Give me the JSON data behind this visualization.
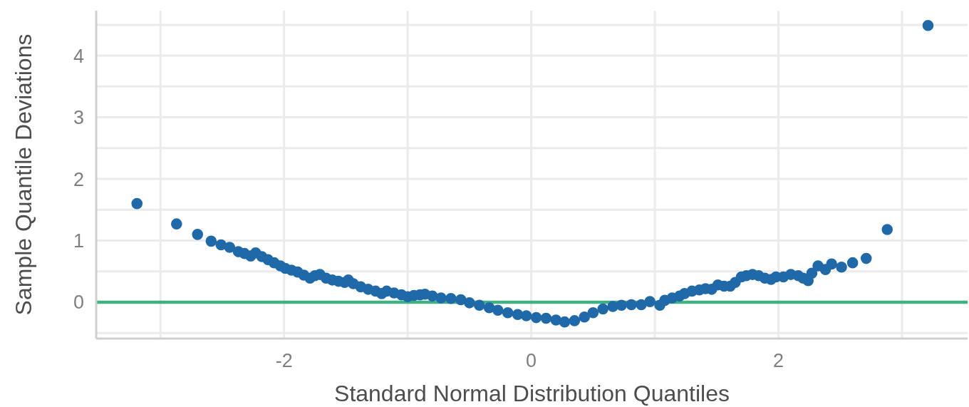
{
  "chart_data": {
    "type": "scatter",
    "xlabel": "Standard Normal Distribution Quantiles",
    "ylabel": "Sample Quantile Deviations",
    "x": [
      -3.19,
      -2.87,
      -2.7,
      -2.59,
      -2.51,
      -2.44,
      -2.37,
      -2.32,
      -2.27,
      -2.23,
      -2.18,
      -2.13,
      -2.08,
      -2.03,
      -1.99,
      -1.94,
      -1.89,
      -1.84,
      -1.79,
      -1.75,
      -1.71,
      -1.66,
      -1.61,
      -1.56,
      -1.51,
      -1.48,
      -1.44,
      -1.38,
      -1.32,
      -1.26,
      -1.21,
      -1.17,
      -1.11,
      -1.05,
      -1.0,
      -0.95,
      -0.9,
      -0.86,
      -0.8,
      -0.73,
      -0.65,
      -0.57,
      -0.5,
      -0.42,
      -0.34,
      -0.27,
      -0.19,
      -0.11,
      -0.04,
      0.04,
      0.12,
      0.2,
      0.27,
      0.35,
      0.43,
      0.5,
      0.58,
      0.66,
      0.73,
      0.81,
      0.89,
      0.96,
      1.04,
      1.08,
      1.14,
      1.2,
      1.24,
      1.3,
      1.36,
      1.41,
      1.46,
      1.51,
      1.56,
      1.61,
      1.65,
      1.7,
      1.74,
      1.79,
      1.84,
      1.89,
      1.94,
      1.98,
      2.04,
      2.1,
      2.16,
      2.2,
      2.24,
      2.27,
      2.32,
      2.38,
      2.43,
      2.51,
      2.6,
      2.71,
      2.88,
      3.21
    ],
    "values": [
      1.6,
      1.27,
      1.1,
      0.99,
      0.93,
      0.89,
      0.82,
      0.79,
      0.75,
      0.8,
      0.74,
      0.69,
      0.64,
      0.59,
      0.55,
      0.52,
      0.49,
      0.44,
      0.39,
      0.43,
      0.45,
      0.39,
      0.36,
      0.34,
      0.32,
      0.36,
      0.3,
      0.25,
      0.21,
      0.18,
      0.14,
      0.18,
      0.15,
      0.12,
      0.09,
      0.11,
      0.12,
      0.13,
      0.1,
      0.07,
      0.06,
      0.04,
      -0.01,
      -0.05,
      -0.09,
      -0.13,
      -0.17,
      -0.2,
      -0.22,
      -0.25,
      -0.26,
      -0.29,
      -0.32,
      -0.3,
      -0.24,
      -0.17,
      -0.11,
      -0.07,
      -0.05,
      -0.04,
      -0.04,
      0.01,
      -0.05,
      0.03,
      0.07,
      0.1,
      0.14,
      0.18,
      0.2,
      0.22,
      0.21,
      0.28,
      0.26,
      0.26,
      0.32,
      0.41,
      0.43,
      0.45,
      0.43,
      0.39,
      0.37,
      0.41,
      0.41,
      0.45,
      0.43,
      0.39,
      0.35,
      0.47,
      0.59,
      0.53,
      0.62,
      0.57,
      0.64,
      0.71,
      1.18,
      4.49
    ],
    "color": "#1f69a9",
    "marker": "circle",
    "xlim": [
      -3.52,
      3.53
    ],
    "ylim": [
      -0.59,
      4.73
    ],
    "xticks": [
      {
        "value": -3,
        "label": null
      },
      -2,
      {
        "value": -1,
        "label": null
      },
      0,
      {
        "value": 1,
        "label": null
      },
      2,
      {
        "value": 3,
        "label": null
      }
    ],
    "yticks": [
      {
        "value": -0.5,
        "label": null
      },
      0,
      {
        "value": 0.5,
        "label": null
      },
      1,
      {
        "value": 1.5,
        "label": null
      },
      2,
      {
        "value": 2.5,
        "label": null
      },
      3,
      {
        "value": 3.5,
        "label": null
      },
      4,
      {
        "value": 4.5,
        "label": null
      }
    ],
    "grid": true,
    "ref_lines": [
      {
        "axis": "y",
        "value": 0,
        "color": "#41b185"
      }
    ]
  }
}
